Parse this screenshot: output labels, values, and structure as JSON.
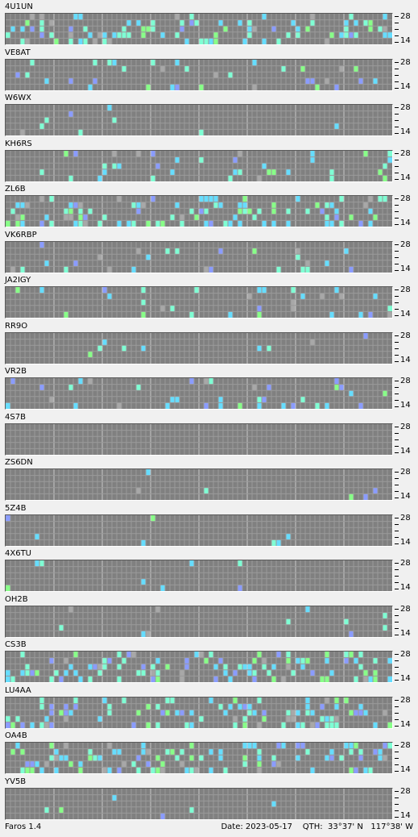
{
  "beacons": [
    "4U1UN",
    "VE8AT",
    "W6WX",
    "KH6RS",
    "ZL6B",
    "VK6RBP",
    "JA2IGY",
    "RR9O",
    "VR2B",
    "4S7B",
    "ZS6DN",
    "5Z4B",
    "4X6TU",
    "OH2B",
    "CS3B",
    "LU4AA",
    "OA4B",
    "YV5B"
  ],
  "axis": {
    "top_label": "28",
    "bottom_label": "14"
  },
  "status": {
    "app_version": "Faros 1.4",
    "date": "Date: 2023-05-17",
    "qth": "QTH:  33°37' N   117°38' W"
  },
  "colors": {
    "grid_bg": "#808080",
    "grid_line": "#9a9a9a",
    "major_line": "#c8c8c8",
    "strong": "#7fffd4",
    "medium": "#66ddff",
    "weak": "#8a9cff",
    "green": "#88ff88",
    "gray": "#a8a8a8"
  },
  "activity": {
    "4U1UN": "HIGH",
    "VE8AT": "MED",
    "W6WX": "LOW",
    "KH6RS": "MED",
    "ZL6B": "HIGH",
    "VK6RBP": "MED",
    "JA2IGY": "MED",
    "RR9O": "LOW",
    "VR2B": "MED",
    "4S7B": "NONE",
    "ZS6DN": "LOW",
    "5Z4B": "LOW",
    "4X6TU": "LOW",
    "OH2B": "LOW",
    "CS3B": "HIGH",
    "LU4AA": "HIGH",
    "OA4B": "HIGH",
    "YV5B": "LOW"
  }
}
